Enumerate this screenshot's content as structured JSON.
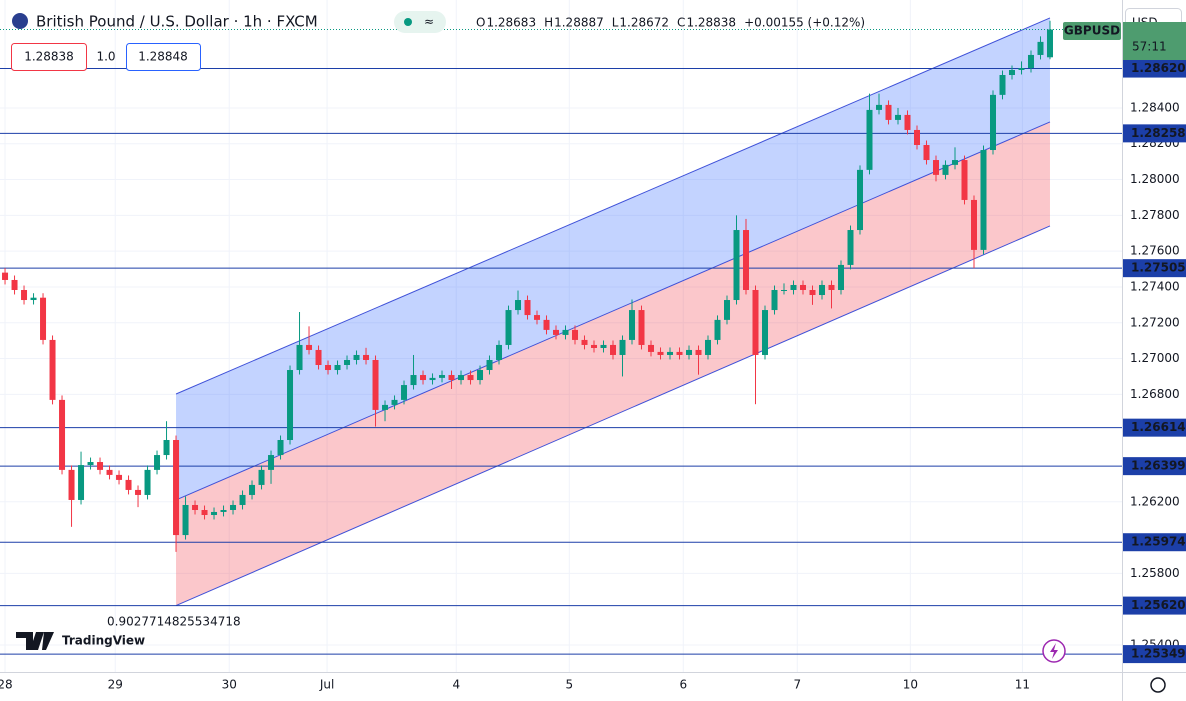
{
  "chart_data": {
    "type": "candlestick",
    "title": "British Pound / U.S. Dollar · 1h · FXCM",
    "ohlc_header": [
      {
        "key": "O",
        "value": "1.28683"
      },
      {
        "key": "H",
        "value": "1.28887"
      },
      {
        "key": "L",
        "value": "1.28672"
      },
      {
        "key": "C",
        "value": "1.28838"
      }
    ],
    "change": "+0.00155 (+0.12%)",
    "sell_price": "1.28838",
    "spread": "1.0",
    "buy_price": "1.28848",
    "currency": "USD",
    "symbol": "GBPUSD",
    "countdown": "57:11",
    "watermark": "TradingView",
    "channel_label": "0.9027714825534718",
    "up_color": "#089981",
    "down_color": "#f23645",
    "candles": {
      "open": [
        1.2748,
        1.27439,
        1.27383,
        1.27327,
        1.2734,
        1.27104,
        1.26769,
        1.26378,
        1.2621,
        1.26405,
        1.26422,
        1.26378,
        1.2635,
        1.26322,
        1.26266,
        1.26238,
        1.26378,
        1.26461,
        1.26545,
        1.26014,
        1.26182,
        1.26154,
        1.26126,
        1.26143,
        1.26154,
        1.26182,
        1.26238,
        1.26294,
        1.26378,
        1.26461,
        1.26545,
        1.26936,
        1.27076,
        1.27048,
        1.26964,
        1.26936,
        1.26964,
        1.26992,
        1.2702,
        1.26992,
        1.26713,
        1.26741,
        1.26769,
        1.26852,
        1.26908,
        1.2688,
        1.26892,
        1.26908,
        1.2688,
        1.26908,
        1.2688,
        1.26936,
        1.26992,
        1.27076,
        1.27271,
        1.27327,
        1.27243,
        1.27216,
        1.2716,
        1.27132,
        1.2716,
        1.27104,
        1.27076,
        1.27059,
        1.27076,
        1.2702,
        1.27104,
        1.27271,
        1.27076,
        1.27037,
        1.2702,
        1.27037,
        1.2702,
        1.27048,
        1.2702,
        1.27104,
        1.27216,
        1.27327,
        1.27718,
        1.27383,
        1.2702,
        1.27271,
        1.27383,
        1.27383,
        1.27411,
        1.27383,
        1.27355,
        1.27411,
        1.27383,
        1.27523,
        1.27718,
        1.28054,
        1.28389,
        1.28417,
        1.28333,
        1.28361,
        1.28277,
        1.28193,
        1.28109,
        1.28026,
        1.28082,
        1.28109,
        1.27886,
        1.27607,
        1.28165,
        1.28473,
        1.28584,
        1.28612,
        1.28623,
        1.28696,
        1.28683
      ],
      "high": [
        1.27505,
        1.27464,
        1.27408,
        1.27365,
        1.27365,
        1.27129,
        1.26794,
        1.26403,
        1.2648,
        1.26447,
        1.26447,
        1.26403,
        1.26375,
        1.26347,
        1.26291,
        1.26403,
        1.26486,
        1.2665,
        1.2657,
        1.2623,
        1.26207,
        1.26179,
        1.26168,
        1.26179,
        1.26207,
        1.26263,
        1.26319,
        1.26403,
        1.26486,
        1.2657,
        1.26961,
        1.2726,
        1.2718,
        1.27073,
        1.26989,
        1.26989,
        1.27017,
        1.27045,
        1.2706,
        1.27017,
        1.26766,
        1.26794,
        1.26877,
        1.2702,
        1.26933,
        1.26917,
        1.26933,
        1.26933,
        1.26933,
        1.26933,
        1.26961,
        1.27017,
        1.27101,
        1.27296,
        1.2738,
        1.27352,
        1.27268,
        1.27241,
        1.27185,
        1.27185,
        1.27185,
        1.27129,
        1.27101,
        1.27101,
        1.27101,
        1.27129,
        1.2733,
        1.27296,
        1.27101,
        1.27062,
        1.27062,
        1.27062,
        1.27073,
        1.27073,
        1.27129,
        1.27241,
        1.27352,
        1.278,
        1.2778,
        1.27408,
        1.27296,
        1.27408,
        1.2742,
        1.27436,
        1.27436,
        1.27408,
        1.27436,
        1.27436,
        1.27548,
        1.27743,
        1.28079,
        1.2848,
        1.2848,
        1.28442,
        1.284,
        1.28386,
        1.28302,
        1.28218,
        1.28134,
        1.28107,
        1.2818,
        1.28134,
        1.27911,
        1.2819,
        1.28498,
        1.28609,
        1.28637,
        1.2866,
        1.28721,
        1.288,
        1.28887
      ],
      "low": [
        1.27414,
        1.27358,
        1.27302,
        1.27302,
        1.27079,
        1.26744,
        1.26353,
        1.2606,
        1.26185,
        1.2638,
        1.26353,
        1.26325,
        1.26297,
        1.26241,
        1.2617,
        1.26213,
        1.26353,
        1.26436,
        1.2592,
        1.25989,
        1.26129,
        1.26101,
        1.26101,
        1.26118,
        1.26129,
        1.26157,
        1.26213,
        1.26269,
        1.263,
        1.26436,
        1.2652,
        1.26911,
        1.27023,
        1.26939,
        1.26911,
        1.26911,
        1.26939,
        1.26967,
        1.26967,
        1.2662,
        1.2665,
        1.26716,
        1.26744,
        1.26827,
        1.26855,
        1.26855,
        1.26867,
        1.2683,
        1.26855,
        1.26855,
        1.26855,
        1.26911,
        1.26967,
        1.27051,
        1.27246,
        1.27218,
        1.27191,
        1.27135,
        1.27107,
        1.27107,
        1.27079,
        1.27051,
        1.27034,
        1.27034,
        1.26995,
        1.269,
        1.27079,
        1.27051,
        1.27012,
        1.26995,
        1.26995,
        1.26995,
        1.26995,
        1.2691,
        1.26995,
        1.27079,
        1.27191,
        1.27302,
        1.27358,
        1.26745,
        1.26995,
        1.27246,
        1.27358,
        1.27358,
        1.27358,
        1.273,
        1.2733,
        1.2728,
        1.27358,
        1.27498,
        1.27693,
        1.28029,
        1.28364,
        1.28308,
        1.28308,
        1.28252,
        1.28168,
        1.28084,
        1.2799,
        1.28001,
        1.28057,
        1.27861,
        1.27505,
        1.27582,
        1.2814,
        1.28448,
        1.28559,
        1.28587,
        1.28598,
        1.28671,
        1.28672
      ],
      "close": [
        1.27439,
        1.27383,
        1.27327,
        1.2734,
        1.27104,
        1.26769,
        1.26378,
        1.2621,
        1.26405,
        1.26422,
        1.26378,
        1.2635,
        1.26322,
        1.26266,
        1.26238,
        1.26378,
        1.26461,
        1.26545,
        1.26014,
        1.26182,
        1.26154,
        1.26126,
        1.26143,
        1.26154,
        1.26182,
        1.26238,
        1.26294,
        1.26378,
        1.26461,
        1.26545,
        1.26936,
        1.27076,
        1.27048,
        1.26964,
        1.26936,
        1.26964,
        1.26992,
        1.2702,
        1.26992,
        1.26713,
        1.26741,
        1.26769,
        1.26852,
        1.26908,
        1.2688,
        1.26892,
        1.26908,
        1.2688,
        1.26908,
        1.2688,
        1.26936,
        1.26992,
        1.27076,
        1.27271,
        1.27327,
        1.27243,
        1.27216,
        1.2716,
        1.27132,
        1.2716,
        1.27104,
        1.27076,
        1.27059,
        1.27076,
        1.2702,
        1.27104,
        1.27271,
        1.27076,
        1.27037,
        1.2702,
        1.27037,
        1.2702,
        1.27048,
        1.2702,
        1.27104,
        1.27216,
        1.27327,
        1.27718,
        1.27383,
        1.2702,
        1.27271,
        1.27383,
        1.27383,
        1.27411,
        1.27383,
        1.27355,
        1.27411,
        1.27383,
        1.27523,
        1.27718,
        1.28054,
        1.28389,
        1.28417,
        1.28333,
        1.28361,
        1.28277,
        1.28193,
        1.28109,
        1.28026,
        1.28082,
        1.28109,
        1.27886,
        1.27607,
        1.28165,
        1.28473,
        1.28584,
        1.28612,
        1.28623,
        1.28696,
        1.28769,
        1.28838
      ]
    },
    "channel": {
      "x": [
        18,
        110
      ],
      "upper": [
        1.26802,
        1.28903
      ],
      "middle": [
        1.2621,
        1.28322
      ],
      "lower": [
        1.2562,
        1.27741
      ],
      "upper_fill": "rgba(41,98,255,0.28)",
      "lower_fill": "rgba(242,54,69,0.28)",
      "line_color": "#3f51d8"
    },
    "hlines_color": "#1c3fa8",
    "hlines": [
      {
        "value": 1.2862,
        "label": "1.28620"
      },
      {
        "value": 1.28258,
        "label": "1.28258"
      },
      {
        "value": 1.27505,
        "label": "1.27505"
      },
      {
        "value": 1.26614,
        "label": "1.26614"
      },
      {
        "value": 1.26399,
        "label": "1.26399"
      },
      {
        "value": 1.25974,
        "label": "1.25974"
      },
      {
        "value": 1.2562,
        "label": "1.25620"
      },
      {
        "value": 1.25349,
        "label": "1.25349"
      }
    ],
    "xlim": [
      -0.53,
      117.58
    ],
    "xticks": [
      {
        "value": 0,
        "label": "28"
      },
      {
        "value": 11.6,
        "label": "29"
      },
      {
        "value": 23.6,
        "label": "30"
      },
      {
        "value": 33.9,
        "label": "Jul"
      },
      {
        "value": 47.5,
        "label": "4"
      },
      {
        "value": 59.4,
        "label": "5"
      },
      {
        "value": 71.4,
        "label": "6"
      },
      {
        "value": 83.4,
        "label": "7"
      },
      {
        "value": 95.3,
        "label": "10"
      },
      {
        "value": 107.1,
        "label": "11"
      }
    ],
    "ylim": [
      1.25249,
      1.29003
    ],
    "yticks": [
      {
        "value": 1.284,
        "label": "1.28400"
      },
      {
        "value": 1.282,
        "label": "1.28200"
      },
      {
        "value": 1.28,
        "label": "1.28000"
      },
      {
        "value": 1.278,
        "label": "1.27800"
      },
      {
        "value": 1.276,
        "label": "1.27600"
      },
      {
        "value": 1.274,
        "label": "1.27400"
      },
      {
        "value": 1.272,
        "label": "1.27200"
      },
      {
        "value": 1.27,
        "label": "1.27000"
      },
      {
        "value": 1.268,
        "label": "1.26800"
      },
      {
        "value": 1.262,
        "label": "1.26200"
      },
      {
        "value": 1.258,
        "label": "1.25800"
      },
      {
        "value": 1.254,
        "label": "1.25400"
      }
    ],
    "grid": true
  }
}
